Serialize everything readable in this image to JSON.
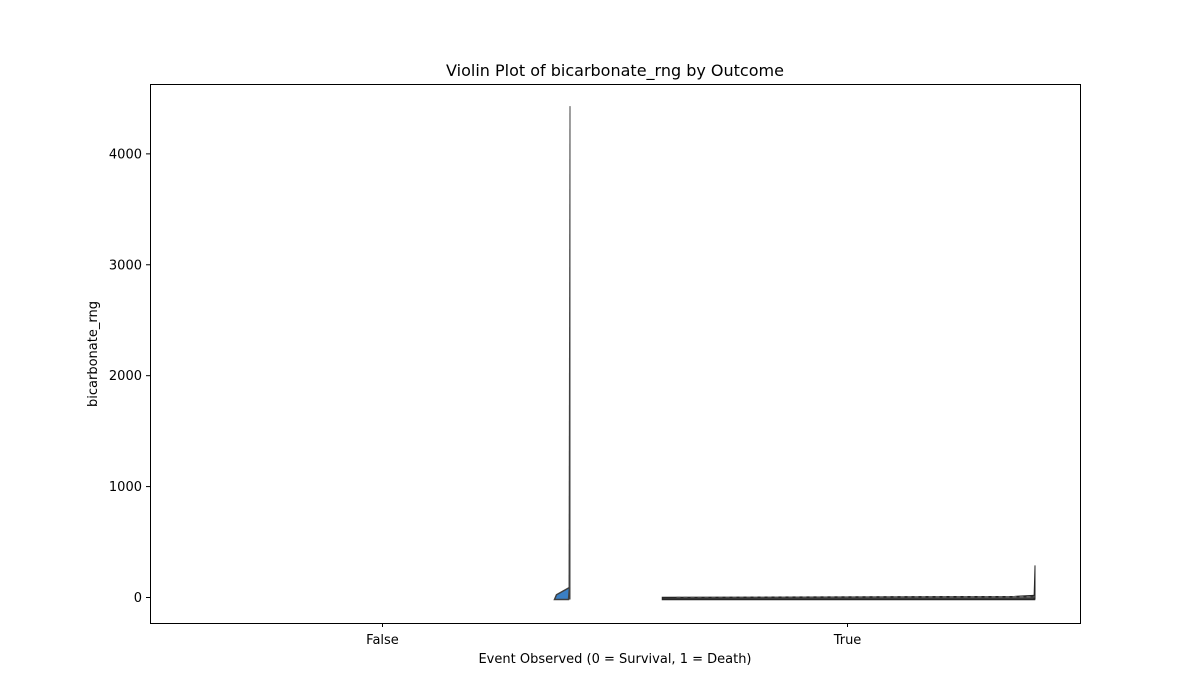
{
  "chart_data": {
    "type": "violin",
    "title": "Violin Plot of bicarbonate_rng by Outcome",
    "xlabel": "Event Observed (0 = Survival, 1 = Death)",
    "ylabel": "bicarbonate_rng",
    "categories": [
      "False",
      "True"
    ],
    "yticks": [
      0,
      1000,
      2000,
      3000,
      4000
    ],
    "ylim": [
      -230,
      4630
    ],
    "grid": false,
    "legend": "none",
    "colors": {
      "fill": "#3a7fc4",
      "edge": "#404040",
      "line": "#262626"
    },
    "violins": [
      {
        "category": "False",
        "min": 0,
        "max": 4430,
        "median": 25,
        "q1": 5,
        "q3": 45
      },
      {
        "category": "True",
        "min": 0,
        "max": 290,
        "median": 5,
        "q1": 2,
        "q3": 8
      }
    ]
  }
}
